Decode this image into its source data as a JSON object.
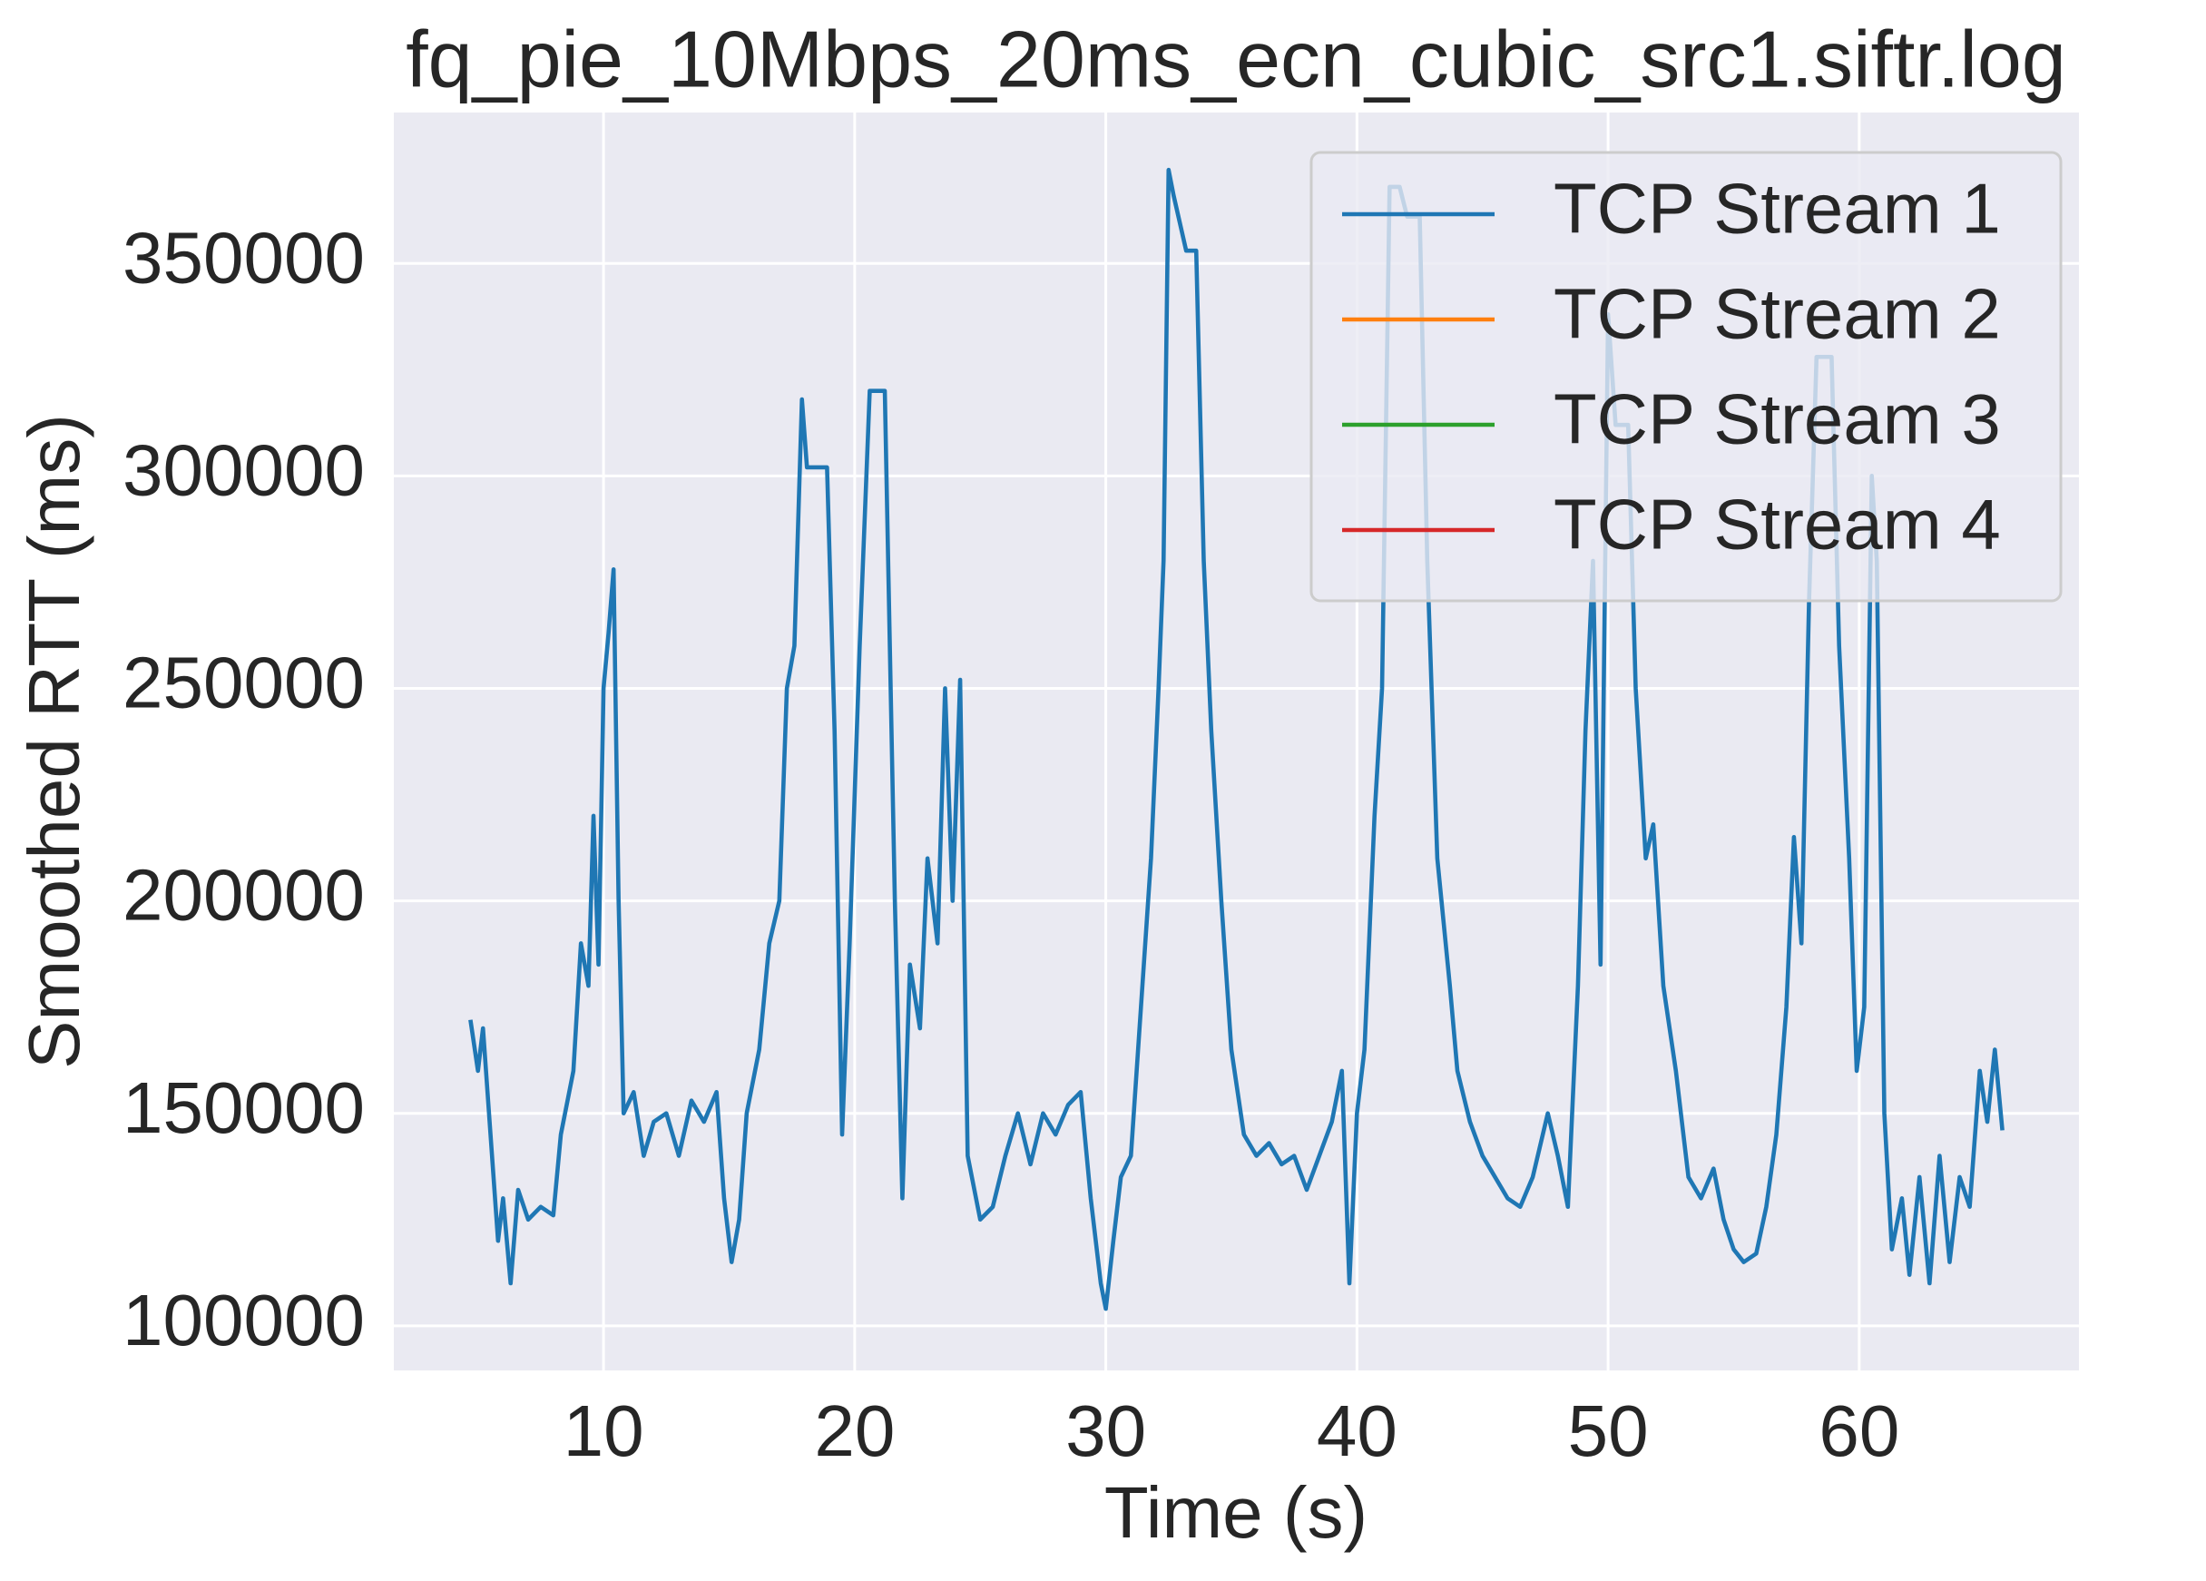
{
  "chart_data": {
    "type": "line",
    "title": "fq_pie_10Mbps_20ms_ecn_cubic_src1.siftr.log",
    "x_label": "Time (s)",
    "y_label": "Smoothed RTT (ms)",
    "xlim": [
      1.65,
      68.75
    ],
    "ylim": [
      89500,
      385500
    ],
    "xticks": [
      10,
      20,
      30,
      40,
      50,
      60
    ],
    "yticks": [
      100000,
      150000,
      200000,
      250000,
      300000,
      350000
    ],
    "grid": true,
    "legend": "upper right",
    "series": [
      {
        "name": "TCP Stream 1",
        "color": "#1f77b4",
        "x": [
          4.7,
          5.0,
          5.2,
          5.5,
          5.8,
          6.0,
          6.3,
          6.6,
          7.0,
          7.5,
          8.0,
          8.3,
          8.8,
          9.1,
          9.4,
          9.6,
          9.8,
          10.0,
          10.2,
          10.4,
          10.6,
          10.8,
          11.2,
          11.6,
          12.0,
          12.5,
          13.0,
          13.5,
          14.0,
          14.5,
          14.8,
          15.1,
          15.4,
          15.7,
          16.2,
          16.6,
          17.0,
          17.3,
          17.6,
          17.9,
          18.1,
          18.9,
          19.2,
          19.5,
          19.8,
          20.2,
          20.6,
          21.2,
          21.6,
          21.9,
          22.2,
          22.6,
          22.9,
          23.3,
          23.6,
          23.9,
          24.2,
          24.5,
          25.0,
          25.5,
          26.0,
          26.5,
          27.0,
          27.5,
          28.0,
          28.5,
          29.0,
          29.4,
          29.8,
          30.0,
          30.3,
          30.6,
          31.0,
          31.4,
          31.8,
          32.1,
          32.3,
          32.5,
          32.7,
          33.2,
          33.6,
          33.9,
          34.2,
          34.6,
          35.0,
          35.5,
          36.0,
          36.5,
          37.0,
          37.5,
          38.0,
          38.5,
          39.0,
          39.4,
          39.7,
          40.0,
          40.3,
          40.7,
          41.0,
          41.3,
          41.7,
          42.0,
          42.5,
          42.8,
          43.2,
          43.7,
          44.0,
          44.5,
          45.0,
          45.5,
          46.0,
          46.5,
          47.0,
          47.6,
          48.0,
          48.4,
          48.8,
          49.1,
          49.4,
          49.7,
          50.0,
          50.3,
          50.8,
          51.1,
          51.5,
          51.8,
          52.2,
          52.7,
          53.2,
          53.7,
          54.2,
          54.6,
          55.0,
          55.4,
          55.9,
          56.3,
          56.7,
          57.1,
          57.4,
          57.7,
          58.0,
          58.3,
          58.9,
          59.2,
          59.6,
          59.9,
          60.2,
          60.5,
          60.7,
          61.0,
          61.3,
          61.7,
          62.0,
          62.4,
          62.8,
          63.2,
          63.6,
          64.0,
          64.4,
          64.8,
          65.1,
          65.4,
          65.7
        ],
        "values": [
          172000,
          160000,
          170000,
          145000,
          120000,
          130000,
          110000,
          132000,
          125000,
          128000,
          126000,
          145000,
          160000,
          190000,
          180000,
          220000,
          185000,
          250000,
          263000,
          278000,
          200000,
          150000,
          155000,
          140000,
          148000,
          150000,
          140000,
          153000,
          148000,
          155000,
          130000,
          115000,
          125000,
          150000,
          165000,
          190000,
          200000,
          250000,
          260000,
          318000,
          302000,
          302000,
          240000,
          145000,
          190000,
          260000,
          320000,
          320000,
          200000,
          130000,
          185000,
          170000,
          210000,
          190000,
          250000,
          200000,
          252000,
          140000,
          125000,
          128000,
          140000,
          150000,
          138000,
          150000,
          145000,
          152000,
          155000,
          130000,
          110000,
          104000,
          120000,
          135000,
          140000,
          175000,
          210000,
          250000,
          280000,
          372000,
          366000,
          353000,
          353000,
          280000,
          240000,
          200000,
          165000,
          145000,
          140000,
          143000,
          138000,
          140000,
          132000,
          140000,
          148000,
          160000,
          110000,
          150000,
          165000,
          220000,
          250000,
          368000,
          368000,
          361000,
          361000,
          280000,
          210000,
          180000,
          160000,
          148000,
          140000,
          135000,
          130000,
          128000,
          135000,
          150000,
          140000,
          128000,
          180000,
          240000,
          280000,
          185000,
          338000,
          312000,
          312000,
          250000,
          210000,
          218000,
          180000,
          160000,
          135000,
          130000,
          137000,
          125000,
          118000,
          115000,
          117000,
          128000,
          145000,
          175000,
          215000,
          190000,
          270000,
          328000,
          328000,
          260000,
          210000,
          160000,
          175000,
          300000,
          280000,
          150000,
          118000,
          130000,
          112000,
          135000,
          110000,
          140000,
          115000,
          135000,
          128000,
          160000,
          148000,
          165000,
          146000
        ]
      },
      {
        "name": "TCP Stream 2",
        "color": "#ff7f0e",
        "x": [],
        "values": []
      },
      {
        "name": "TCP Stream 3",
        "color": "#2ca02c",
        "x": [],
        "values": []
      },
      {
        "name": "TCP Stream 4",
        "color": "#d62728",
        "x": [],
        "values": []
      }
    ]
  }
}
